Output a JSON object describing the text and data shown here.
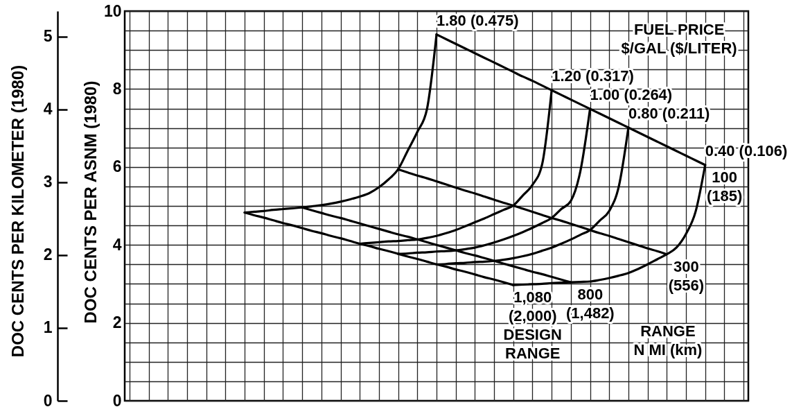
{
  "chart_data": {
    "type": "line",
    "ylabel": "DOC CENTS PER ASNM (1980)",
    "y2label": "DOC CENTS PER KILOMETER (1980)",
    "annotations": [
      "FUEL PRICE $/GAL ($/LITER)",
      "RANGE N MI (km)"
    ],
    "categories": [
      null,
      null,
      null,
      null,
      null,
      null,
      null,
      null,
      null,
      null,
      null,
      null,
      null,
      null,
      null,
      null,
      null,
      null,
      null,
      null,
      null,
      null,
      null,
      null,
      null,
      null,
      null,
      null,
      null,
      null,
      null,
      null,
      null,
      null,
      null,
      null,
      null,
      null,
      null,
      null,
      null,
      null,
      null,
      null,
      null,
      null,
      null,
      null,
      null,
      null,
      null,
      null,
      null,
      null,
      null,
      null,
      null,
      null,
      null,
      null,
      null,
      null,
      null,
      null,
      null
    ],
    "ylim": [
      0,
      10
    ],
    "yticks": [
      0,
      {
        "value": 0.5,
        "label": null
      },
      {
        "value": 1,
        "label": null
      },
      {
        "value": 1.5,
        "label": null
      },
      2,
      {
        "value": 2.5,
        "label": null
      },
      {
        "value": 3,
        "label": null
      },
      {
        "value": 3.5,
        "label": null
      },
      4,
      {
        "value": 4.5,
        "label": null
      },
      {
        "value": 5,
        "label": null
      },
      {
        "value": 5.5,
        "label": null
      },
      6,
      {
        "value": 6.5,
        "label": null
      },
      {
        "value": 7,
        "label": null
      },
      {
        "value": 7.5,
        "label": null
      },
      8,
      {
        "value": 8.5,
        "label": null
      },
      {
        "value": 9,
        "label": null
      },
      {
        "value": 9.5,
        "label": null
      },
      10
    ],
    "y2lim": [
      0,
      5.35
    ],
    "y2ticks": [
      0,
      1,
      2,
      3,
      4,
      5
    ],
    "grid": true,
    "tick_labels": "y",
    "series": [
      {
        "name": "1.80 (0.475)",
        "color": "#000000",
        "values": [
          null,
          null,
          null,
          null,
          null,
          null,
          null,
          null,
          null,
          null,
          null,
          null,
          4.83,
          4.85,
          4.87,
          4.9,
          4.92,
          4.94,
          4.96,
          4.99,
          5.02,
          5.06,
          5.11,
          5.17,
          5.24,
          5.33,
          5.48,
          5.68,
          5.94,
          6.42,
          6.9,
          7.48,
          9.4,
          null,
          null,
          null,
          null,
          null,
          null,
          null,
          null,
          null,
          null,
          null,
          null,
          null,
          null,
          null,
          null,
          null,
          null,
          null,
          null,
          null,
          null,
          null,
          null,
          null,
          null,
          null,
          null,
          null,
          null,
          null,
          null
        ]
      },
      {
        "name": "1.20 (0.317)",
        "color": "#000000",
        "values": [
          null,
          null,
          null,
          null,
          null,
          null,
          null,
          null,
          null,
          null,
          null,
          null,
          null,
          null,
          null,
          null,
          null,
          null,
          null,
          null,
          null,
          null,
          null,
          null,
          4.03,
          4.05,
          4.07,
          4.09,
          4.1,
          4.12,
          4.14,
          4.18,
          4.23,
          4.3,
          4.38,
          4.48,
          4.58,
          4.68,
          4.79,
          4.9,
          5.01,
          5.27,
          5.54,
          6.06,
          7.97,
          null,
          null,
          null,
          null,
          null,
          null,
          null,
          null,
          null,
          null,
          null,
          null,
          null,
          null,
          null,
          null,
          null,
          null,
          null,
          null
        ]
      },
      {
        "name": "1.00 (0.264)",
        "color": "#000000",
        "values": [
          null,
          null,
          null,
          null,
          null,
          null,
          null,
          null,
          null,
          null,
          null,
          null,
          null,
          null,
          null,
          null,
          null,
          null,
          null,
          null,
          null,
          null,
          null,
          null,
          null,
          null,
          null,
          null,
          3.77,
          3.78,
          3.8,
          3.81,
          3.83,
          3.84,
          3.86,
          3.89,
          3.93,
          3.99,
          4.06,
          4.14,
          4.23,
          4.33,
          4.44,
          4.56,
          4.69,
          4.92,
          5.13,
          5.9,
          7.49,
          null,
          null,
          null,
          null,
          null,
          null,
          null,
          null,
          null,
          null,
          null,
          null,
          null,
          null,
          null,
          null
        ]
      },
      {
        "name": "0.80 (0.211)",
        "color": "#000000",
        "values": [
          null,
          null,
          null,
          null,
          null,
          null,
          null,
          null,
          null,
          null,
          null,
          null,
          null,
          null,
          null,
          null,
          null,
          null,
          null,
          null,
          null,
          null,
          null,
          null,
          null,
          null,
          null,
          null,
          null,
          null,
          null,
          null,
          3.5,
          3.51,
          3.53,
          3.54,
          3.56,
          3.57,
          3.59,
          3.62,
          3.66,
          3.71,
          3.77,
          3.85,
          3.93,
          4.03,
          4.14,
          4.26,
          4.38,
          4.62,
          4.87,
          5.5,
          7.01,
          null,
          null,
          null,
          null,
          null,
          null,
          null,
          null,
          null,
          null,
          null,
          null
        ]
      },
      {
        "name": "0.40 (0.106)",
        "color": "#000000",
        "values": [
          null,
          null,
          null,
          null,
          null,
          null,
          null,
          null,
          null,
          null,
          null,
          null,
          null,
          null,
          null,
          null,
          null,
          null,
          null,
          null,
          null,
          null,
          null,
          null,
          null,
          null,
          null,
          null,
          null,
          null,
          null,
          null,
          null,
          null,
          null,
          null,
          null,
          null,
          null,
          null,
          2.97,
          2.98,
          2.99,
          3.0,
          3.02,
          3.03,
          3.04,
          3.05,
          3.06,
          3.1,
          3.15,
          3.21,
          3.28,
          3.38,
          3.5,
          3.63,
          3.76,
          3.93,
          4.28,
          4.85,
          6.05,
          null,
          null,
          null,
          null
        ]
      },
      {
        "name": "100 (185)",
        "color": "#000000",
        "values": [
          null,
          null,
          null,
          null,
          null,
          null,
          null,
          null,
          null,
          null,
          null,
          null,
          null,
          null,
          null,
          null,
          null,
          null,
          null,
          null,
          null,
          null,
          null,
          null,
          null,
          null,
          null,
          null,
          null,
          null,
          null,
          null,
          9.4,
          9.28,
          9.16,
          9.04,
          8.92,
          8.8,
          8.68,
          8.56,
          8.44,
          8.32,
          8.21,
          8.09,
          7.97,
          7.85,
          7.73,
          7.61,
          7.49,
          7.37,
          7.25,
          7.13,
          7.01,
          6.89,
          6.77,
          6.65,
          6.53,
          6.41,
          6.29,
          6.17,
          6.05,
          null,
          null,
          null,
          null
        ]
      },
      {
        "name": "300 (556)",
        "color": "#000000",
        "values": [
          null,
          null,
          null,
          null,
          null,
          null,
          null,
          null,
          null,
          null,
          null,
          null,
          null,
          null,
          null,
          null,
          null,
          null,
          null,
          null,
          null,
          null,
          null,
          null,
          null,
          null,
          null,
          null,
          5.94,
          5.86,
          5.78,
          5.71,
          5.63,
          5.55,
          5.47,
          5.39,
          5.32,
          5.24,
          5.16,
          5.08,
          5.01,
          4.93,
          4.85,
          4.77,
          4.69,
          4.62,
          4.54,
          4.46,
          4.38,
          4.3,
          4.23,
          4.15,
          4.07,
          3.99,
          3.91,
          3.84,
          3.76,
          null,
          null,
          null,
          null,
          null,
          null,
          null,
          null
        ]
      },
      {
        "name": "800 (1,482)",
        "color": "#000000",
        "values": [
          null,
          null,
          null,
          null,
          null,
          null,
          null,
          null,
          null,
          null,
          null,
          null,
          null,
          null,
          null,
          null,
          null,
          null,
          4.96,
          4.89,
          4.82,
          4.75,
          4.69,
          4.62,
          4.55,
          4.48,
          4.41,
          4.34,
          4.27,
          4.21,
          4.14,
          4.07,
          4.0,
          3.93,
          3.86,
          3.79,
          3.73,
          3.66,
          3.59,
          3.52,
          3.45,
          3.38,
          3.31,
          3.25,
          3.18,
          3.11,
          3.04,
          null,
          null,
          null,
          null,
          null,
          null,
          null,
          null,
          null,
          null,
          null,
          null,
          null,
          null,
          null,
          null,
          null,
          null
        ]
      },
      {
        "name": "1,080 (2,000) DESIGN RANGE",
        "color": "#000000",
        "values": [
          null,
          null,
          null,
          null,
          null,
          null,
          null,
          null,
          null,
          null,
          null,
          null,
          4.83,
          4.76,
          4.7,
          4.63,
          4.56,
          4.5,
          4.43,
          4.36,
          4.3,
          4.23,
          4.17,
          4.1,
          4.03,
          3.97,
          3.9,
          3.84,
          3.77,
          3.7,
          3.64,
          3.57,
          3.5,
          3.44,
          3.37,
          3.31,
          3.24,
          3.17,
          3.11,
          3.04,
          2.97,
          null,
          null,
          null,
          null,
          null,
          null,
          null,
          null,
          null,
          null,
          null,
          null,
          null,
          null,
          null,
          null,
          null,
          null,
          null,
          null,
          null,
          null,
          null,
          null
        ]
      }
    ]
  }
}
